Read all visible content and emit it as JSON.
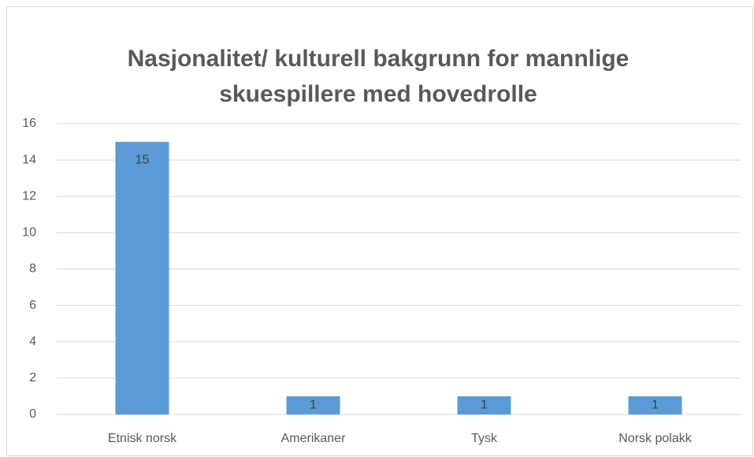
{
  "chart_data": {
    "type": "bar",
    "title": "Nasjonalitet/ kulturell bakgrunn for mannlige skuespillere med hovedrolle",
    "categories": [
      "Etnisk norsk",
      "Amerikaner",
      "Tysk",
      "Norsk polakk"
    ],
    "values": [
      15,
      1,
      1,
      1
    ],
    "color": "#5b9bd5",
    "ylim": [
      0,
      16
    ],
    "yticks": [
      0,
      2,
      4,
      6,
      8,
      10,
      12,
      14,
      16
    ],
    "grid": true,
    "data_labels": true
  }
}
